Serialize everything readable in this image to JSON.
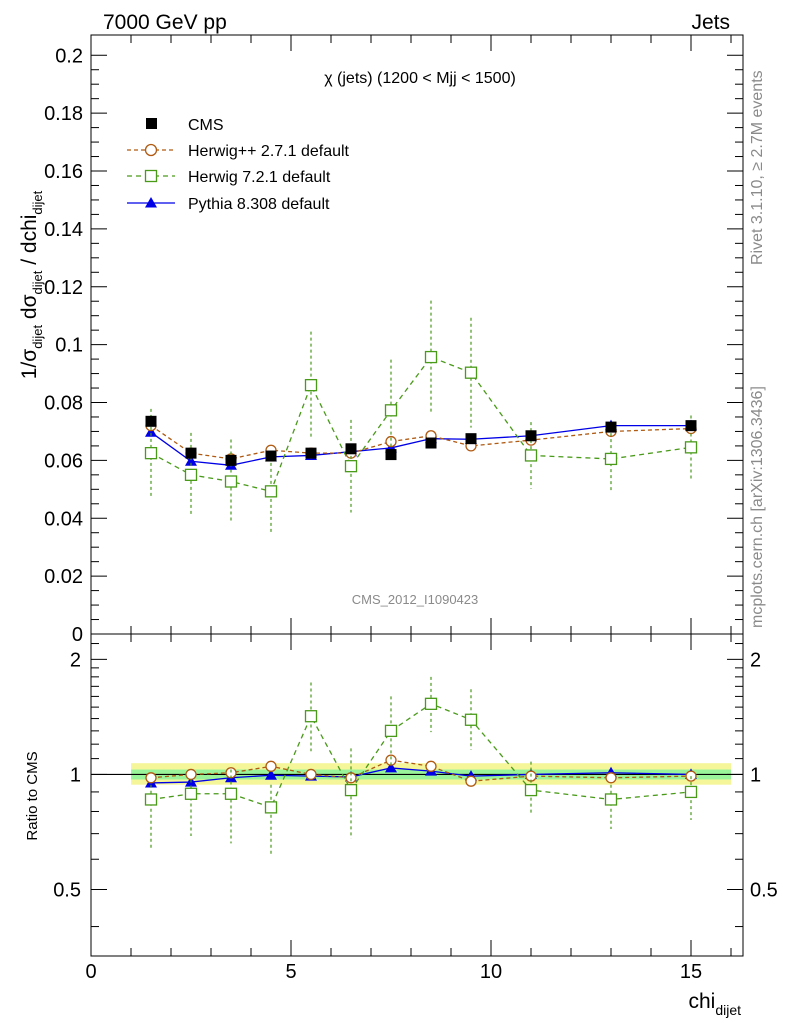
{
  "header": {
    "left": "7000 GeV pp",
    "right": "Jets"
  },
  "side": {
    "rivet": "Rivet 3.1.10, ≥ 2.7M events",
    "mcplots": "mcplots.cern.ch [arXiv:1306.3436]"
  },
  "chart_data": [
    {
      "type": "line",
      "title": "χ (jets) (1200 < Mjj < 1500)",
      "watermark": "CMS_2012_I1090423",
      "ylabel": {
        "main": "1/σ",
        "sub1": "dijet",
        "mid": " dσ",
        "sub2": "dijet",
        "tail": " / dchi",
        "sub3": "dijet"
      },
      "xlim": [
        0,
        16.3
      ],
      "ylim": [
        0,
        0.207
      ],
      "yticks": [
        0,
        0.02,
        0.04,
        0.06,
        0.08,
        0.1,
        0.12,
        0.14,
        0.16,
        0.18,
        0.2
      ],
      "yticklabels": [
        "0",
        "0.02",
        "0.04",
        "0.06",
        "0.08",
        "0.1",
        "0.12",
        "0.14",
        "0.16",
        "0.18",
        "0.2"
      ],
      "x": [
        1.5,
        2.5,
        3.5,
        4.5,
        5.5,
        6.5,
        7.5,
        8.5,
        9.5,
        11,
        13,
        15
      ],
      "series": [
        {
          "name": "CMS",
          "color": "#000000",
          "marker": "square-filled",
          "values": [
            0.0735,
            0.0625,
            0.06,
            0.0615,
            0.0625,
            0.064,
            0.062,
            0.066,
            0.0675,
            0.0685,
            0.0715,
            0.072
          ],
          "err": [
            0.0015,
            0.001,
            0.001,
            0.001,
            0.001,
            0.001,
            0.001,
            0.001,
            0.001,
            0.001,
            0.001,
            0.001
          ]
        },
        {
          "name": "Herwig++ 2.7.1 default",
          "color": "#b05a12",
          "marker": "circle-open",
          "dash": "4,3",
          "values": [
            0.072,
            0.0625,
            0.0605,
            0.0635,
            0.0625,
            0.0625,
            0.0665,
            0.0685,
            0.065,
            0.067,
            0.07,
            0.071
          ],
          "err": [
            0.001,
            0.001,
            0.001,
            0.001,
            0.001,
            0.001,
            0.001,
            0.001,
            0.001,
            0.001,
            0.001,
            0.001
          ]
        },
        {
          "name": "Herwig 7.2.1 default",
          "color": "#4a9a1a",
          "marker": "square-open",
          "dash": "5,4",
          "values": [
            0.0625,
            0.055,
            0.0527,
            0.0493,
            0.086,
            0.058,
            0.0773,
            0.0957,
            0.0903,
            0.0617,
            0.0605,
            0.0645
          ],
          "err": [
            0.0153,
            0.0145,
            0.0145,
            0.014,
            0.0185,
            0.016,
            0.0175,
            0.0195,
            0.019,
            0.0115,
            0.011,
            0.011
          ]
        },
        {
          "name": "Pythia 8.308 default",
          "color": "#0000e6",
          "marker": "triangle-filled",
          "values": [
            0.0697,
            0.0597,
            0.0583,
            0.0612,
            0.0617,
            0.063,
            0.0643,
            0.0675,
            0.0673,
            0.0685,
            0.072,
            0.072
          ],
          "err": [
            0.001,
            0.001,
            0.001,
            0.001,
            0.001,
            0.001,
            0.001,
            0.001,
            0.001,
            0.001,
            0.001,
            0.001
          ]
        }
      ]
    },
    {
      "type": "line",
      "ylabel": "Ratio to CMS",
      "xlabel": "chi",
      "xlabel_sub": "dijet",
      "log_y": true,
      "xlim": [
        0,
        16.3
      ],
      "ylim": [
        0.335,
        2.33
      ],
      "xticks": [
        0,
        5,
        10,
        15
      ],
      "xticklabels": [
        "0",
        "5",
        "10",
        "15"
      ],
      "yticks": [
        0.5,
        1,
        2
      ],
      "yticklabels": [
        "0.5",
        "1",
        "2"
      ],
      "band": {
        "x": [
          1,
          16
        ],
        "inner": [
          0.97,
          1.03
        ],
        "outer": [
          0.94,
          1.07
        ]
      },
      "x": [
        1.5,
        2.5,
        3.5,
        4.5,
        5.5,
        6.5,
        7.5,
        8.5,
        9.5,
        11,
        13,
        15
      ],
      "series": [
        {
          "name": "Herwig++ 2.7.1 default",
          "color": "#b05a12",
          "marker": "circle-open",
          "dash": "4,3",
          "values": [
            0.98,
            1.0,
            1.01,
            1.05,
            1.0,
            0.98,
            1.09,
            1.05,
            0.96,
            0.99,
            0.98,
            0.99
          ],
          "err_lo": [
            0,
            0,
            0,
            0,
            0,
            0,
            0,
            0,
            0,
            0,
            0,
            0
          ],
          "err_hi": [
            0,
            0,
            0,
            0,
            0,
            0,
            0,
            0,
            0,
            0,
            0,
            0
          ]
        },
        {
          "name": "Herwig 7.2.1 default",
          "color": "#4a9a1a",
          "marker": "square-open",
          "dash": "5,4",
          "values": [
            0.86,
            0.89,
            0.89,
            0.82,
            1.42,
            0.91,
            1.3,
            1.53,
            1.39,
            0.91,
            0.86,
            0.9
          ],
          "err_lo": [
            0.22,
            0.2,
            0.23,
            0.21,
            0.27,
            0.23,
            0.24,
            0.24,
            0.23,
            0.13,
            0.14,
            0.14
          ],
          "err_hi": [
            0.08,
            0.08,
            0.14,
            0.12,
            0.32,
            0.26,
            0.3,
            0.27,
            0.28,
            0.17,
            0.08,
            0.09
          ]
        },
        {
          "name": "Pythia 8.308 default",
          "color": "#0000e6",
          "marker": "triangle-filled",
          "values": [
            0.95,
            0.955,
            0.98,
            0.995,
            0.99,
            0.985,
            1.04,
            1.02,
            0.99,
            1.0,
            1.01,
            1.0
          ],
          "err_lo": [
            0,
            0,
            0,
            0,
            0,
            0,
            0,
            0,
            0,
            0,
            0,
            0
          ],
          "err_hi": [
            0,
            0,
            0,
            0,
            0,
            0,
            0,
            0,
            0,
            0,
            0,
            0
          ]
        }
      ]
    }
  ]
}
